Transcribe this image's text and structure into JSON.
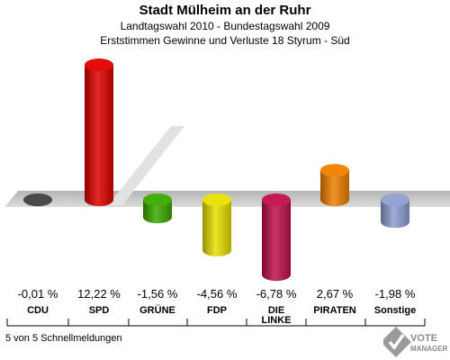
{
  "header": {
    "title": "Stadt Mülheim an der Ruhr",
    "subtitle1": "Landtagswahl 2010 - Bundestagswahl 2009",
    "subtitle2": "Erststimmen Gewinne und Verluste 18 Styrum - Süd"
  },
  "footer": {
    "status": "5 von 5 Schnellmeldungen",
    "logo_text1": "VOTE",
    "logo_text2": "MANAGER"
  },
  "chart_data": {
    "type": "bar",
    "categories": [
      "CDU",
      "SPD",
      "GRÜNE",
      "FDP",
      "DIE LINKE",
      "PIRATEN",
      "Sonstige"
    ],
    "category_lines": [
      [
        "CDU"
      ],
      [
        "SPD"
      ],
      [
        "GRÜNE"
      ],
      [
        "FDP"
      ],
      [
        "DIE",
        "LINKE"
      ],
      [
        "PIRATEN"
      ],
      [
        "Sonstige"
      ]
    ],
    "values": [
      -0.01,
      12.22,
      -1.56,
      -4.56,
      -6.78,
      2.67,
      -1.98
    ],
    "value_labels": [
      "-0,01 %",
      "12,22 %",
      "-1,56 %",
      "-4,56 %",
      "-6,78 %",
      "2,67 %",
      "-1,98 %"
    ],
    "colors": [
      "#404040",
      "#e00000",
      "#3aaa00",
      "#e8e000",
      "#c0104a",
      "#f08000",
      "#8f9fd0"
    ],
    "unit": "%",
    "grid": false,
    "legend": "none"
  }
}
